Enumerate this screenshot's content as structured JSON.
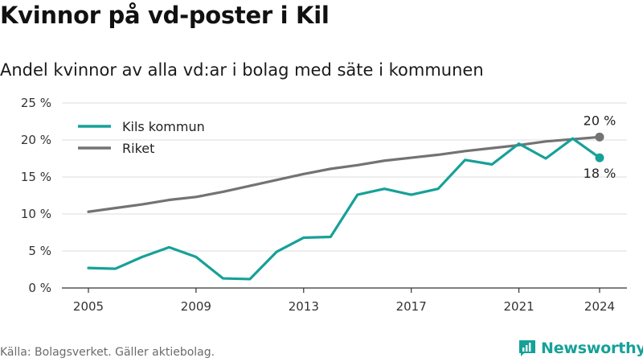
{
  "title": "Kvinnor på vd-poster i Kil",
  "subtitle": "Andel kvinnor av alla vd:ar i bolag med säte i kommunen",
  "source": "Källa: Bolagsverket. Gäller aktiebolag.",
  "brand": {
    "name": "Newsworthy",
    "color": "#16a198",
    "logo_icon": "newsworthy-logo-icon"
  },
  "chart_data": {
    "type": "line",
    "title": "Kvinnor på vd-poster i Kil",
    "subtitle": "Andel kvinnor av alla vd:ar i bolag med säte i kommunen",
    "x": [
      2005,
      2006,
      2007,
      2008,
      2009,
      2010,
      2011,
      2012,
      2013,
      2014,
      2015,
      2016,
      2017,
      2018,
      2019,
      2020,
      2021,
      2022,
      2023,
      2024
    ],
    "x_ticks": [
      "2005",
      "2009",
      "2013",
      "2017",
      "2021",
      "2024"
    ],
    "ylim": [
      0,
      25
    ],
    "y_ticks": [
      "0 %",
      "5 %",
      "10 %",
      "15 %",
      "20 %",
      "25 %"
    ],
    "y_tick_values": [
      0,
      5,
      10,
      15,
      20,
      25
    ],
    "grid": "horizontal",
    "legend_position": "top-left",
    "series": [
      {
        "name": "Kils kommun",
        "color": "#16a198",
        "values": [
          2.7,
          2.6,
          4.2,
          5.5,
          4.2,
          1.3,
          1.2,
          4.9,
          6.8,
          6.9,
          12.6,
          13.4,
          12.6,
          13.4,
          17.3,
          16.7,
          19.5,
          17.5,
          20.2,
          17.6
        ],
        "end_label": "18 %"
      },
      {
        "name": "Riket",
        "color": "#737373",
        "values": [
          10.3,
          10.8,
          11.3,
          11.9,
          12.3,
          13.0,
          13.8,
          14.6,
          15.4,
          16.1,
          16.6,
          17.2,
          17.6,
          18.0,
          18.5,
          18.9,
          19.3,
          19.8,
          20.1,
          20.4
        ],
        "end_label": "20 %"
      }
    ]
  }
}
